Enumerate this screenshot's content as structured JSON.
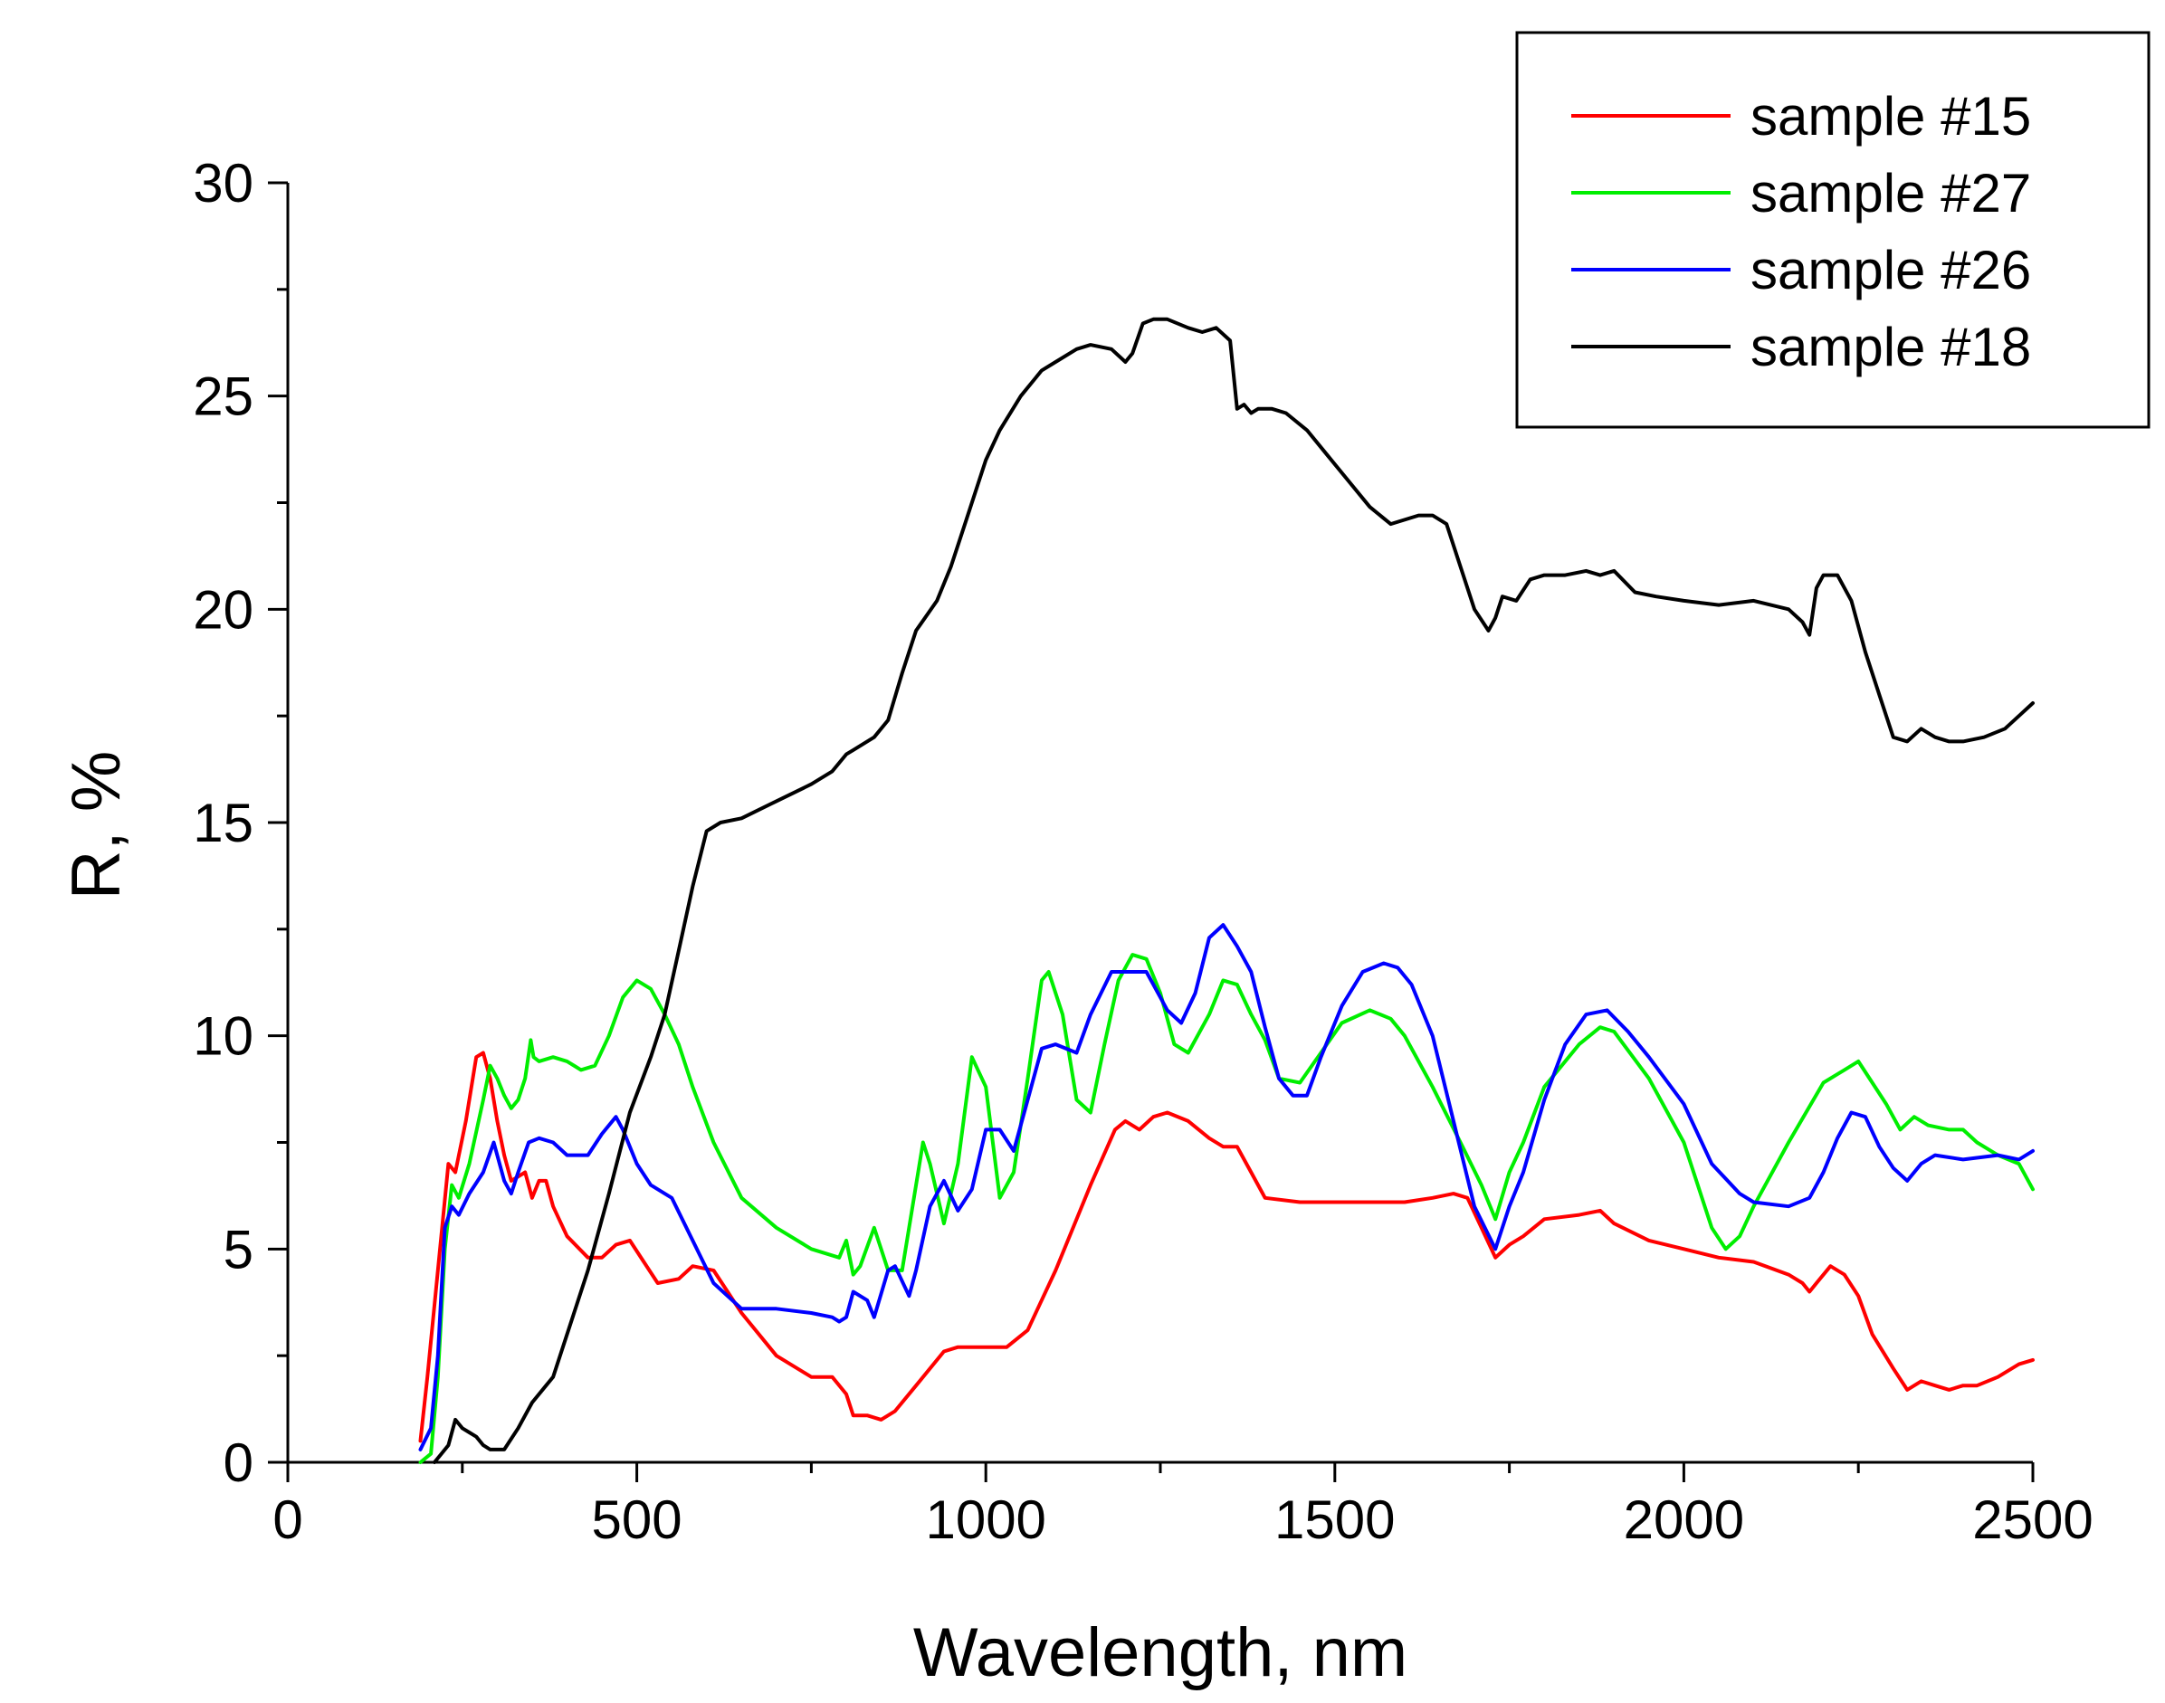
{
  "chart_data": {
    "type": "line",
    "title": "",
    "xlabel": "Wavelength, nm",
    "ylabel": "R, %",
    "xlim": [
      0,
      2500
    ],
    "ylim": [
      0,
      30
    ],
    "x_ticks": [
      0,
      500,
      1000,
      1500,
      2000,
      2500
    ],
    "y_ticks": [
      0,
      5,
      10,
      15,
      20,
      25,
      30
    ],
    "legend_position": "top-right",
    "series": [
      {
        "name": "sample #15",
        "color": "#ff0000",
        "x": [
          190,
          200,
          215,
          230,
          240,
          255,
          270,
          280,
          290,
          300,
          310,
          320,
          340,
          350,
          360,
          370,
          380,
          400,
          430,
          450,
          470,
          490,
          510,
          530,
          560,
          580,
          610,
          650,
          700,
          750,
          780,
          800,
          810,
          830,
          850,
          870,
          900,
          940,
          960,
          990,
          1030,
          1060,
          1100,
          1150,
          1185,
          1200,
          1220,
          1240,
          1260,
          1290,
          1320,
          1340,
          1360,
          1380,
          1400,
          1450,
          1500,
          1550,
          1600,
          1640,
          1670,
          1690,
          1710,
          1730,
          1750,
          1770,
          1800,
          1850,
          1880,
          1900,
          1950,
          2000,
          2050,
          2100,
          2150,
          2170,
          2180,
          2190,
          2210,
          2230,
          2250,
          2270,
          2300,
          2320,
          2340,
          2360,
          2380,
          2400,
          2420,
          2450,
          2480,
          2500
        ],
        "values": [
          0.5,
          2.0,
          4.5,
          7.0,
          6.8,
          8.0,
          9.5,
          9.6,
          9.0,
          8.0,
          7.2,
          6.6,
          6.8,
          6.2,
          6.6,
          6.6,
          6.0,
          5.3,
          4.8,
          4.8,
          5.1,
          5.2,
          4.7,
          4.2,
          4.3,
          4.6,
          4.5,
          3.5,
          2.5,
          2.0,
          2.0,
          1.6,
          1.1,
          1.1,
          1.0,
          1.2,
          1.8,
          2.6,
          2.7,
          2.7,
          2.7,
          3.1,
          4.5,
          6.5,
          7.8,
          8.0,
          7.8,
          8.1,
          8.2,
          8.0,
          7.6,
          7.4,
          7.4,
          6.8,
          6.2,
          6.1,
          6.1,
          6.1,
          6.1,
          6.2,
          6.3,
          6.2,
          5.5,
          4.8,
          5.1,
          5.3,
          5.7,
          5.8,
          5.9,
          5.6,
          5.2,
          5.0,
          4.8,
          4.7,
          4.4,
          4.2,
          4.0,
          4.2,
          4.6,
          4.4,
          3.9,
          3.0,
          2.2,
          1.7,
          1.9,
          1.8,
          1.7,
          1.8,
          1.8,
          2.0,
          2.3,
          2.4
        ]
      },
      {
        "name": "sample #27",
        "color": "#00ee00",
        "x": [
          190,
          205,
          215,
          225,
          235,
          245,
          260,
          280,
          290,
          300,
          310,
          320,
          330,
          340,
          348,
          352,
          360,
          380,
          400,
          420,
          440,
          460,
          480,
          500,
          520,
          540,
          560,
          580,
          610,
          650,
          700,
          750,
          790,
          800,
          810,
          820,
          840,
          850,
          860,
          880,
          900,
          910,
          920,
          940,
          960,
          980,
          1000,
          1020,
          1040,
          1060,
          1080,
          1090,
          1110,
          1130,
          1150,
          1170,
          1190,
          1210,
          1230,
          1250,
          1270,
          1290,
          1320,
          1340,
          1360,
          1380,
          1400,
          1420,
          1450,
          1480,
          1510,
          1550,
          1580,
          1600,
          1640,
          1680,
          1710,
          1730,
          1750,
          1770,
          1800,
          1850,
          1880,
          1900,
          1950,
          2000,
          2040,
          2060,
          2080,
          2100,
          2150,
          2200,
          2230,
          2250,
          2270,
          2290,
          2310,
          2330,
          2350,
          2380,
          2400,
          2420,
          2450,
          2480,
          2500
        ],
        "values": [
          0.0,
          0.2,
          2.0,
          5.0,
          6.5,
          6.2,
          7.0,
          8.5,
          9.3,
          9.0,
          8.6,
          8.3,
          8.5,
          9.0,
          9.9,
          9.5,
          9.4,
          9.5,
          9.4,
          9.2,
          9.3,
          10.0,
          10.9,
          11.3,
          11.1,
          10.5,
          9.8,
          8.8,
          7.5,
          6.2,
          5.5,
          5.0,
          4.8,
          5.2,
          4.4,
          4.6,
          5.5,
          5.0,
          4.5,
          4.5,
          6.5,
          7.5,
          7.0,
          5.6,
          7.0,
          9.5,
          8.8,
          6.2,
          6.8,
          9.0,
          11.3,
          11.5,
          10.5,
          8.5,
          8.2,
          9.8,
          11.3,
          11.9,
          11.8,
          11.0,
          9.8,
          9.6,
          10.5,
          11.3,
          11.2,
          10.5,
          9.9,
          9.0,
          8.9,
          9.6,
          10.3,
          10.6,
          10.4,
          10.0,
          8.8,
          7.5,
          6.5,
          5.7,
          6.8,
          7.5,
          8.8,
          9.8,
          10.2,
          10.1,
          9.0,
          7.5,
          5.5,
          5.0,
          5.3,
          6.0,
          7.5,
          8.9,
          9.2,
          9.4,
          8.9,
          8.4,
          7.8,
          8.1,
          7.9,
          7.8,
          7.8,
          7.5,
          7.2,
          7.0,
          6.4
        ]
      },
      {
        "name": "sample #26",
        "color": "#0000ff",
        "x": [
          190,
          205,
          215,
          225,
          235,
          245,
          260,
          280,
          295,
          310,
          320,
          330,
          345,
          360,
          380,
          400,
          430,
          450,
          470,
          480,
          500,
          520,
          550,
          580,
          610,
          650,
          700,
          750,
          780,
          790,
          800,
          810,
          830,
          840,
          860,
          870,
          890,
          900,
          920,
          940,
          960,
          980,
          1000,
          1020,
          1040,
          1060,
          1080,
          1100,
          1130,
          1150,
          1180,
          1200,
          1230,
          1250,
          1260,
          1280,
          1300,
          1320,
          1340,
          1360,
          1380,
          1400,
          1420,
          1440,
          1460,
          1480,
          1510,
          1540,
          1570,
          1590,
          1610,
          1640,
          1670,
          1700,
          1730,
          1750,
          1770,
          1800,
          1830,
          1860,
          1890,
          1920,
          1950,
          2000,
          2040,
          2080,
          2100,
          2150,
          2180,
          2200,
          2220,
          2240,
          2260,
          2280,
          2300,
          2320,
          2340,
          2360,
          2400,
          2450,
          2480,
          2500
        ],
        "values": [
          0.3,
          0.8,
          2.5,
          5.5,
          6.0,
          5.8,
          6.3,
          6.8,
          7.5,
          6.6,
          6.3,
          6.8,
          7.5,
          7.6,
          7.5,
          7.2,
          7.2,
          7.7,
          8.1,
          7.8,
          7.0,
          6.5,
          6.2,
          5.2,
          4.2,
          3.6,
          3.6,
          3.5,
          3.4,
          3.3,
          3.4,
          4.0,
          3.8,
          3.4,
          4.5,
          4.6,
          3.9,
          4.5,
          6.0,
          6.6,
          5.9,
          6.4,
          7.8,
          7.8,
          7.3,
          8.5,
          9.7,
          9.8,
          9.6,
          10.5,
          11.5,
          11.5,
          11.5,
          10.9,
          10.6,
          10.3,
          11.0,
          12.3,
          12.6,
          12.1,
          11.5,
          10.2,
          9.0,
          8.6,
          8.6,
          9.5,
          10.7,
          11.5,
          11.7,
          11.6,
          11.2,
          10.0,
          8.0,
          6.0,
          5.0,
          6.0,
          6.8,
          8.5,
          9.8,
          10.5,
          10.6,
          10.1,
          9.5,
          8.4,
          7.0,
          6.3,
          6.1,
          6.0,
          6.2,
          6.8,
          7.6,
          8.2,
          8.1,
          7.4,
          6.9,
          6.6,
          7.0,
          7.2,
          7.1,
          7.2,
          7.1,
          7.3
        ]
      },
      {
        "name": "sample #18",
        "color": "#000000",
        "x": [
          210,
          220,
          230,
          240,
          250,
          260,
          270,
          280,
          290,
          300,
          310,
          330,
          350,
          370,
          380,
          400,
          430,
          460,
          490,
          520,
          540,
          560,
          580,
          600,
          620,
          650,
          700,
          750,
          780,
          800,
          810,
          840,
          860,
          880,
          900,
          930,
          950,
          970,
          1000,
          1020,
          1050,
          1080,
          1100,
          1130,
          1150,
          1180,
          1200,
          1210,
          1225,
          1240,
          1260,
          1290,
          1310,
          1330,
          1350,
          1360,
          1370,
          1380,
          1390,
          1410,
          1430,
          1460,
          1490,
          1520,
          1550,
          1580,
          1620,
          1640,
          1660,
          1680,
          1700,
          1720,
          1730,
          1740,
          1760,
          1780,
          1800,
          1830,
          1860,
          1880,
          1900,
          1930,
          1960,
          2000,
          2050,
          2100,
          2150,
          2170,
          2180,
          2190,
          2200,
          2220,
          2240,
          2260,
          2280,
          2300,
          2320,
          2340,
          2360,
          2380,
          2400,
          2430,
          2460,
          2480,
          2500
        ],
        "values": [
          0.0,
          0.2,
          0.4,
          1.0,
          0.8,
          0.7,
          0.6,
          0.4,
          0.3,
          0.3,
          0.3,
          0.8,
          1.4,
          1.8,
          2.0,
          3.0,
          4.5,
          6.3,
          8.2,
          9.5,
          10.5,
          12.0,
          13.5,
          14.8,
          15.0,
          15.1,
          15.5,
          15.9,
          16.2,
          16.6,
          16.7,
          17.0,
          17.4,
          18.5,
          19.5,
          20.2,
          21.0,
          22.0,
          23.5,
          24.2,
          25.0,
          25.6,
          25.8,
          26.1,
          26.2,
          26.1,
          25.8,
          26.0,
          26.7,
          26.8,
          26.8,
          26.6,
          26.5,
          26.6,
          26.3,
          24.7,
          24.8,
          24.6,
          24.7,
          24.7,
          24.6,
          24.2,
          23.6,
          23.0,
          22.4,
          22.0,
          22.2,
          22.2,
          22.0,
          21.0,
          20.0,
          19.5,
          19.8,
          20.3,
          20.2,
          20.7,
          20.8,
          20.8,
          20.9,
          20.8,
          20.9,
          20.4,
          20.3,
          20.2,
          20.1,
          20.2,
          20.0,
          19.7,
          19.4,
          20.5,
          20.8,
          20.8,
          20.2,
          19.0,
          18.0,
          17.0,
          16.9,
          17.2,
          17.0,
          16.9,
          16.9,
          17.0,
          17.2,
          17.5,
          17.8
        ]
      }
    ]
  }
}
